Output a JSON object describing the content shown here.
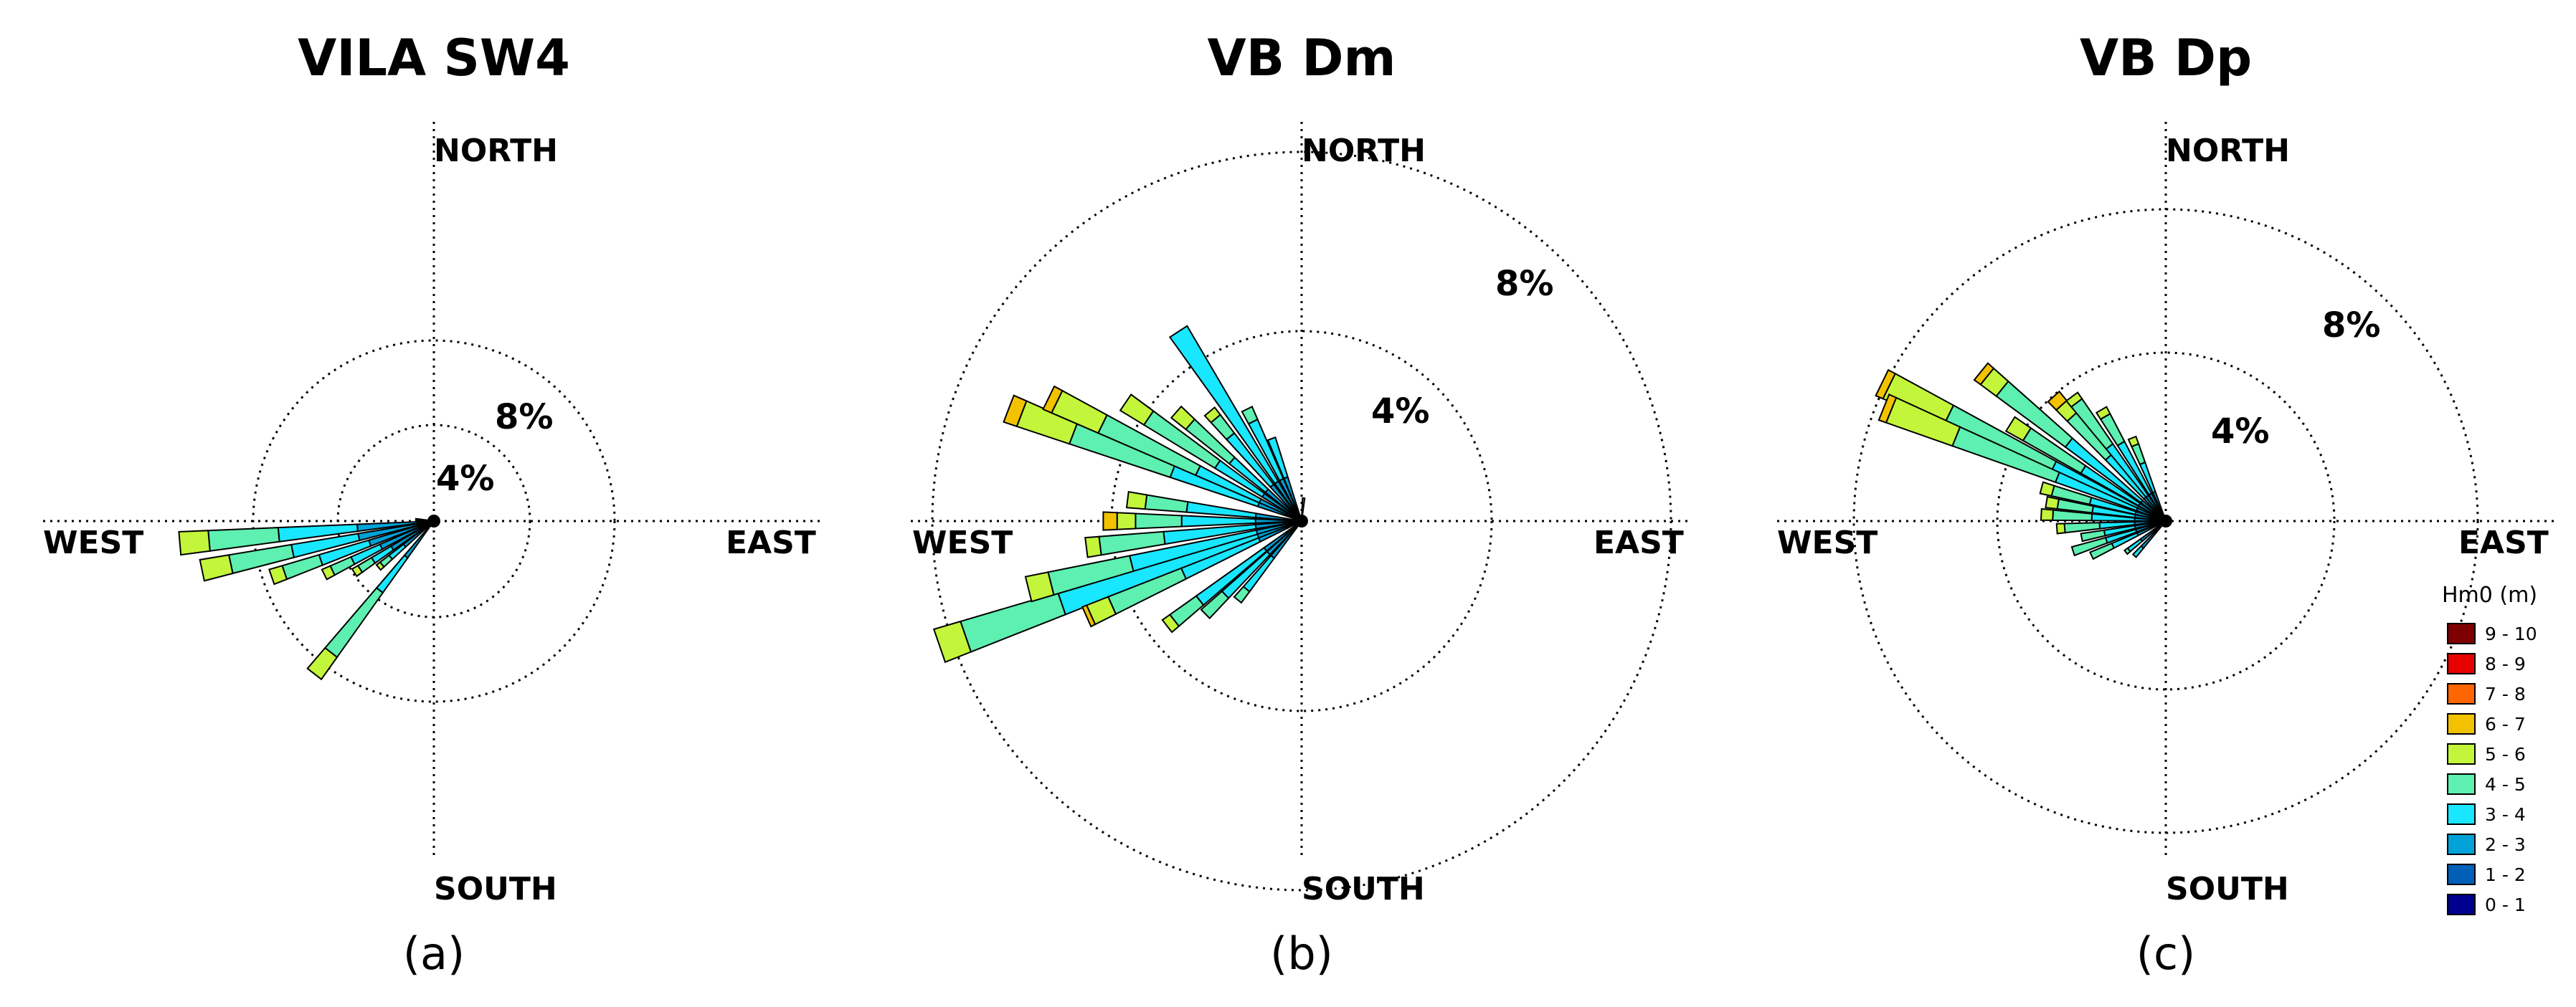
{
  "panels": [
    {
      "title": "VILA SW4",
      "caption": "(a)",
      "directions": {
        "north": "NORTH",
        "south": "SOUTH",
        "east": "EAST",
        "west": "WEST"
      },
      "ring_labels": [
        "4%",
        "8%"
      ]
    },
    {
      "title": "VB Dm",
      "caption": "(b)",
      "directions": {
        "north": "NORTH",
        "south": "SOUTH",
        "east": "EAST",
        "west": "WEST"
      },
      "ring_labels": [
        "4%",
        "8%"
      ]
    },
    {
      "title": "VB Dp",
      "caption": "(c)",
      "directions": {
        "north": "NORTH",
        "south": "SOUTH",
        "east": "EAST",
        "west": "WEST"
      },
      "ring_labels": [
        "4%",
        "8%"
      ]
    }
  ],
  "legend": {
    "title": "Hm0 (m)",
    "items": [
      {
        "label": "9 - 10",
        "color": "#7f0000"
      },
      {
        "label": "8 - 9",
        "color": "#e60000"
      },
      {
        "label": "7 - 8",
        "color": "#ff6600"
      },
      {
        "label": "6 - 7",
        "color": "#f2c200"
      },
      {
        "label": "5 - 6",
        "color": "#c3f53a"
      },
      {
        "label": "4 - 5",
        "color": "#5df0b0"
      },
      {
        "label": "3 - 4",
        "color": "#19e6ff"
      },
      {
        "label": "2 - 3",
        "color": "#00a2d8"
      },
      {
        "label": "1 - 2",
        "color": "#0060b8"
      },
      {
        "label": "0 - 1",
        "color": "#00008f"
      }
    ]
  },
  "chart_data": [
    {
      "type": "polar_bar",
      "title": "VILA SW4",
      "caption": "(a)",
      "rings_percent": [
        4,
        8
      ],
      "bin_labels": [
        "0 - 1",
        "1 - 2",
        "2 - 3",
        "3 - 4",
        "4 - 5",
        "5 - 6",
        "6 - 7",
        "7 - 8",
        "8 - 9",
        "9 - 10"
      ],
      "sectors": [
        {
          "dir_deg": 265,
          "cum_percent": [
            0,
            0.4,
            3.4,
            6.9,
            10.0,
            11.3,
            11.3,
            11.3,
            11.3,
            11.3
          ]
        },
        {
          "dir_deg": 258,
          "cum_percent": [
            0,
            0.4,
            3.4,
            6.4,
            9.2,
            10.5,
            10.5,
            10.5,
            10.5,
            10.5
          ]
        },
        {
          "dir_deg": 251,
          "cum_percent": [
            0,
            0.4,
            3.0,
            5.3,
            7.0,
            7.6,
            7.6,
            7.6,
            7.6,
            7.6
          ]
        },
        {
          "dir_deg": 244,
          "cum_percent": [
            0,
            0.4,
            2.6,
            4.0,
            5.0,
            5.4,
            5.4,
            5.4,
            5.4,
            5.4
          ]
        },
        {
          "dir_deg": 237,
          "cum_percent": [
            0,
            0.4,
            2.2,
            3.2,
            3.9,
            4.2,
            4.2,
            4.2,
            4.2,
            4.2
          ]
        },
        {
          "dir_deg": 230,
          "cum_percent": [
            0,
            0.3,
            1.7,
            2.5,
            3.0,
            3.2,
            3.2,
            3.2,
            3.2,
            3.2
          ]
        },
        {
          "dir_deg": 218,
          "cum_percent": [
            0,
            0.3,
            2.0,
            3.9,
            7.4,
            8.6,
            8.6,
            8.6,
            8.6,
            8.6
          ]
        },
        {
          "dir_deg": 275,
          "cum_percent": [
            0,
            0.3,
            0.6,
            0.8,
            0.8,
            0.8,
            0.8,
            0.8,
            0.8,
            0.8
          ]
        }
      ]
    },
    {
      "type": "polar_bar",
      "title": "VB Dm",
      "caption": "(b)",
      "rings_percent": [
        4,
        8
      ],
      "bin_labels": [
        "0 - 1",
        "1 - 2",
        "2 - 3",
        "3 - 4",
        "4 - 5",
        "5 - 6",
        "6 - 7",
        "7 - 8",
        "8 - 9",
        "9 - 10"
      ],
      "sectors": [
        {
          "dir_deg": 251,
          "cum_percent": [
            0,
            0.2,
            1.0,
            5.5,
            7.7,
            8.3,
            8.3,
            8.3,
            8.3,
            8.3
          ]
        },
        {
          "dir_deg": 246,
          "cum_percent": [
            0,
            0.2,
            1.0,
            2.8,
            4.5,
            5.0,
            5.1,
            5.1,
            5.1,
            5.1
          ]
        },
        {
          "dir_deg": 256,
          "cum_percent": [
            0,
            0.2,
            1.0,
            3.8,
            5.6,
            6.1,
            6.1,
            6.1,
            6.1,
            6.1
          ]
        },
        {
          "dir_deg": 263,
          "cum_percent": [
            0,
            0.2,
            1.0,
            3.0,
            4.4,
            4.7,
            4.7,
            4.7,
            4.7,
            4.7
          ]
        },
        {
          "dir_deg": 270,
          "cum_percent": [
            0,
            0.2,
            1.0,
            2.6,
            3.6,
            4.0,
            4.3,
            4.3,
            4.3,
            4.3
          ]
        },
        {
          "dir_deg": 277,
          "cum_percent": [
            0,
            0.2,
            1.0,
            2.5,
            3.4,
            3.8,
            3.8,
            3.8,
            3.8,
            3.8
          ]
        },
        {
          "dir_deg": 291,
          "cum_percent": [
            0,
            0.2,
            1.0,
            3.0,
            5.3,
            6.5,
            6.8,
            6.8,
            6.8,
            6.8
          ]
        },
        {
          "dir_deg": 296,
          "cum_percent": [
            0,
            0.2,
            1.0,
            2.5,
            4.8,
            5.9,
            6.1,
            6.1,
            6.1,
            6.1
          ]
        },
        {
          "dir_deg": 304,
          "cum_percent": [
            0,
            0.2,
            1.0,
            2.2,
            4.0,
            4.6,
            4.6,
            4.6,
            4.6,
            4.6
          ]
        },
        {
          "dir_deg": 311,
          "cum_percent": [
            0,
            0.2,
            1.0,
            2.0,
            3.2,
            3.6,
            3.6,
            3.6,
            3.6,
            3.6
          ]
        },
        {
          "dir_deg": 320,
          "cum_percent": [
            0,
            0.2,
            1.0,
            2.4,
            2.9,
            3.1,
            3.1,
            3.1,
            3.1,
            3.1
          ]
        },
        {
          "dir_deg": 327,
          "cum_percent": [
            0,
            0.2,
            1.0,
            4.9,
            4.9,
            4.9,
            4.9,
            4.9,
            4.9,
            4.9
          ]
        },
        {
          "dir_deg": 334,
          "cum_percent": [
            0,
            0.2,
            1.0,
            2.4,
            2.7,
            2.7,
            2.7,
            2.7,
            2.7,
            2.7
          ]
        },
        {
          "dir_deg": 340,
          "cum_percent": [
            0,
            0.2,
            1.0,
            1.9,
            1.9,
            1.9,
            1.9,
            1.9,
            1.9,
            1.9
          ]
        },
        {
          "dir_deg": 232,
          "cum_percent": [
            0,
            0.2,
            1.0,
            2.8,
            3.5,
            3.7,
            3.7,
            3.7,
            3.7,
            3.7
          ]
        },
        {
          "dir_deg": 226,
          "cum_percent": [
            0,
            0.2,
            1.0,
            2.3,
            2.9,
            2.9,
            2.9,
            2.9,
            2.9,
            2.9
          ]
        },
        {
          "dir_deg": 219,
          "cum_percent": [
            0,
            0.2,
            1.0,
            1.9,
            2.2,
            2.2,
            2.2,
            2.2,
            2.2,
            2.2
          ]
        },
        {
          "dir_deg": 5,
          "cum_percent": [
            0,
            0.2,
            0.5,
            0.5,
            0.5,
            0.5,
            0.5,
            0.5,
            0.5,
            0.5
          ]
        }
      ]
    },
    {
      "type": "polar_bar",
      "title": "VB Dp",
      "caption": "(c)",
      "rings_percent": [
        4,
        8
      ],
      "bin_labels": [
        "0 - 1",
        "1 - 2",
        "2 - 3",
        "3 - 4",
        "4 - 5",
        "5 - 6",
        "6 - 7",
        "7 - 8",
        "8 - 9",
        "9 - 10"
      ],
      "sectors": [
        {
          "dir_deg": 296,
          "cum_percent": [
            0,
            0.2,
            0.8,
            3.2,
            6.2,
            7.9,
            8.1,
            8.1,
            8.1,
            8.1
          ]
        },
        {
          "dir_deg": 292,
          "cum_percent": [
            0,
            0.2,
            0.8,
            3.0,
            5.8,
            7.6,
            7.8,
            7.8,
            7.8,
            7.8
          ]
        },
        {
          "dir_deg": 309,
          "cum_percent": [
            0,
            0.2,
            0.8,
            3.2,
            5.4,
            5.9,
            6.1,
            6.1,
            6.1,
            6.1
          ]
        },
        {
          "dir_deg": 302,
          "cum_percent": [
            0,
            0.2,
            0.8,
            2.5,
            4.2,
            4.7,
            4.7,
            4.7,
            4.7,
            4.7
          ]
        },
        {
          "dir_deg": 318,
          "cum_percent": [
            0,
            0.2,
            0.8,
            2.2,
            3.6,
            4.0,
            4.3,
            4.3,
            4.3,
            4.3
          ]
        },
        {
          "dir_deg": 323,
          "cum_percent": [
            0,
            0.2,
            0.8,
            2.4,
            3.8,
            4.0,
            4.0,
            4.0,
            4.0,
            4.0
          ]
        },
        {
          "dir_deg": 330,
          "cum_percent": [
            0,
            0.2,
            0.8,
            2.3,
            3.1,
            3.3,
            3.3,
            3.3,
            3.3,
            3.3
          ]
        },
        {
          "dir_deg": 338,
          "cum_percent": [
            0,
            0.2,
            0.8,
            1.6,
            2.1,
            2.3,
            2.3,
            2.3,
            2.3,
            2.3
          ]
        },
        {
          "dir_deg": 285,
          "cum_percent": [
            0,
            0.2,
            0.8,
            2.0,
            3.0,
            3.3,
            3.3,
            3.3,
            3.3,
            3.3
          ]
        },
        {
          "dir_deg": 279,
          "cum_percent": [
            0,
            0.2,
            0.8,
            1.9,
            2.8,
            3.1,
            3.1,
            3.1,
            3.1,
            3.1
          ]
        },
        {
          "dir_deg": 273,
          "cum_percent": [
            0,
            0.2,
            0.8,
            1.9,
            2.9,
            3.2,
            3.2,
            3.2,
            3.2,
            3.2
          ]
        },
        {
          "dir_deg": 266,
          "cum_percent": [
            0,
            0.2,
            0.8,
            1.7,
            2.6,
            2.8,
            2.8,
            2.8,
            2.8,
            2.8
          ]
        },
        {
          "dir_deg": 259,
          "cum_percent": [
            0,
            0.2,
            0.8,
            1.6,
            2.2,
            2.2,
            2.2,
            2.2,
            2.2,
            2.2
          ]
        },
        {
          "dir_deg": 252,
          "cum_percent": [
            0,
            0.2,
            0.8,
            1.6,
            2.5,
            2.5,
            2.5,
            2.5,
            2.5,
            2.5
          ]
        },
        {
          "dir_deg": 245,
          "cum_percent": [
            0,
            0.2,
            0.8,
            1.5,
            2.1,
            2.1,
            2.1,
            2.1,
            2.1,
            2.1
          ]
        },
        {
          "dir_deg": 232,
          "cum_percent": [
            0,
            0.2,
            0.8,
            1.2,
            1.3,
            1.3,
            1.3,
            1.3,
            1.3,
            1.3
          ]
        },
        {
          "dir_deg": 222,
          "cum_percent": [
            0,
            0.2,
            0.9,
            1.2,
            1.2,
            1.2,
            1.2,
            1.2,
            1.2,
            1.2
          ]
        }
      ]
    }
  ]
}
